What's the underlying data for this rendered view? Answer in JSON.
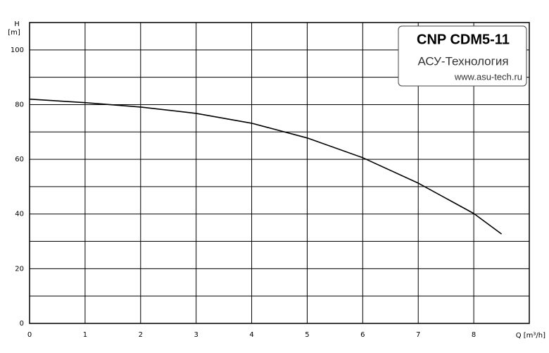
{
  "chart_data": {
    "type": "line",
    "y_label": "H",
    "y_unit": "[m]",
    "x_label": "Q [m³/h]",
    "annotations": [
      "CNP CDM5-11",
      "АСУ-Технология",
      "www.asu-tech.ru"
    ],
    "xlim": [
      0,
      9
    ],
    "ylim": [
      0,
      110
    ],
    "xticks": [
      0,
      1,
      2,
      3,
      4,
      5,
      6,
      7,
      8
    ],
    "yticks": [
      0,
      20,
      40,
      60,
      80,
      100
    ],
    "y_minor_ticks": [
      10,
      30,
      50,
      70,
      90,
      110
    ],
    "grid": true,
    "x": [
      0,
      1,
      2,
      3,
      4,
      5,
      6,
      7,
      8,
      8.5
    ],
    "series": [
      {
        "color": "#000000",
        "values": [
          82,
          80.7,
          79.1,
          76.8,
          73.2,
          67.8,
          60.6,
          51.3,
          40.2,
          32.7
        ]
      }
    ]
  }
}
